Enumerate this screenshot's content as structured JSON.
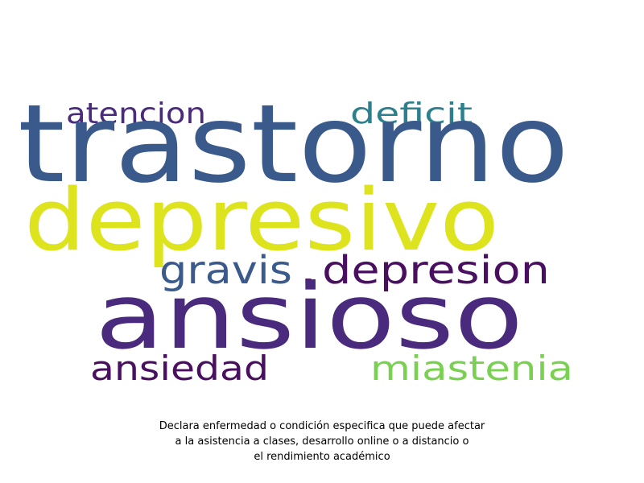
{
  "wordcloud": {
    "words": [
      {
        "text": "trastorno",
        "color": "#3b5a8c"
      },
      {
        "text": "depresivo",
        "color": "#dde31c"
      },
      {
        "text": "ansioso",
        "color": "#4a2a7c"
      },
      {
        "text": "atencion",
        "color": "#4a2a7c"
      },
      {
        "text": "deficit",
        "color": "#2c7f8c"
      },
      {
        "text": "gravis",
        "color": "#3b5a8c"
      },
      {
        "text": "depresion",
        "color": "#4a1060"
      },
      {
        "text": "ansiedad",
        "color": "#4a1060"
      },
      {
        "text": "miastenia",
        "color": "#7ad151"
      },
      {
        "text": ".",
        "color": "#4a1060"
      }
    ]
  },
  "caption": {
    "line1": "Declara enfermedad o condición especifica que puede afectar",
    "line2": "a la asistencia a clases, desarrollo online o a distancio o",
    "line3": "el rendimiento académico"
  }
}
